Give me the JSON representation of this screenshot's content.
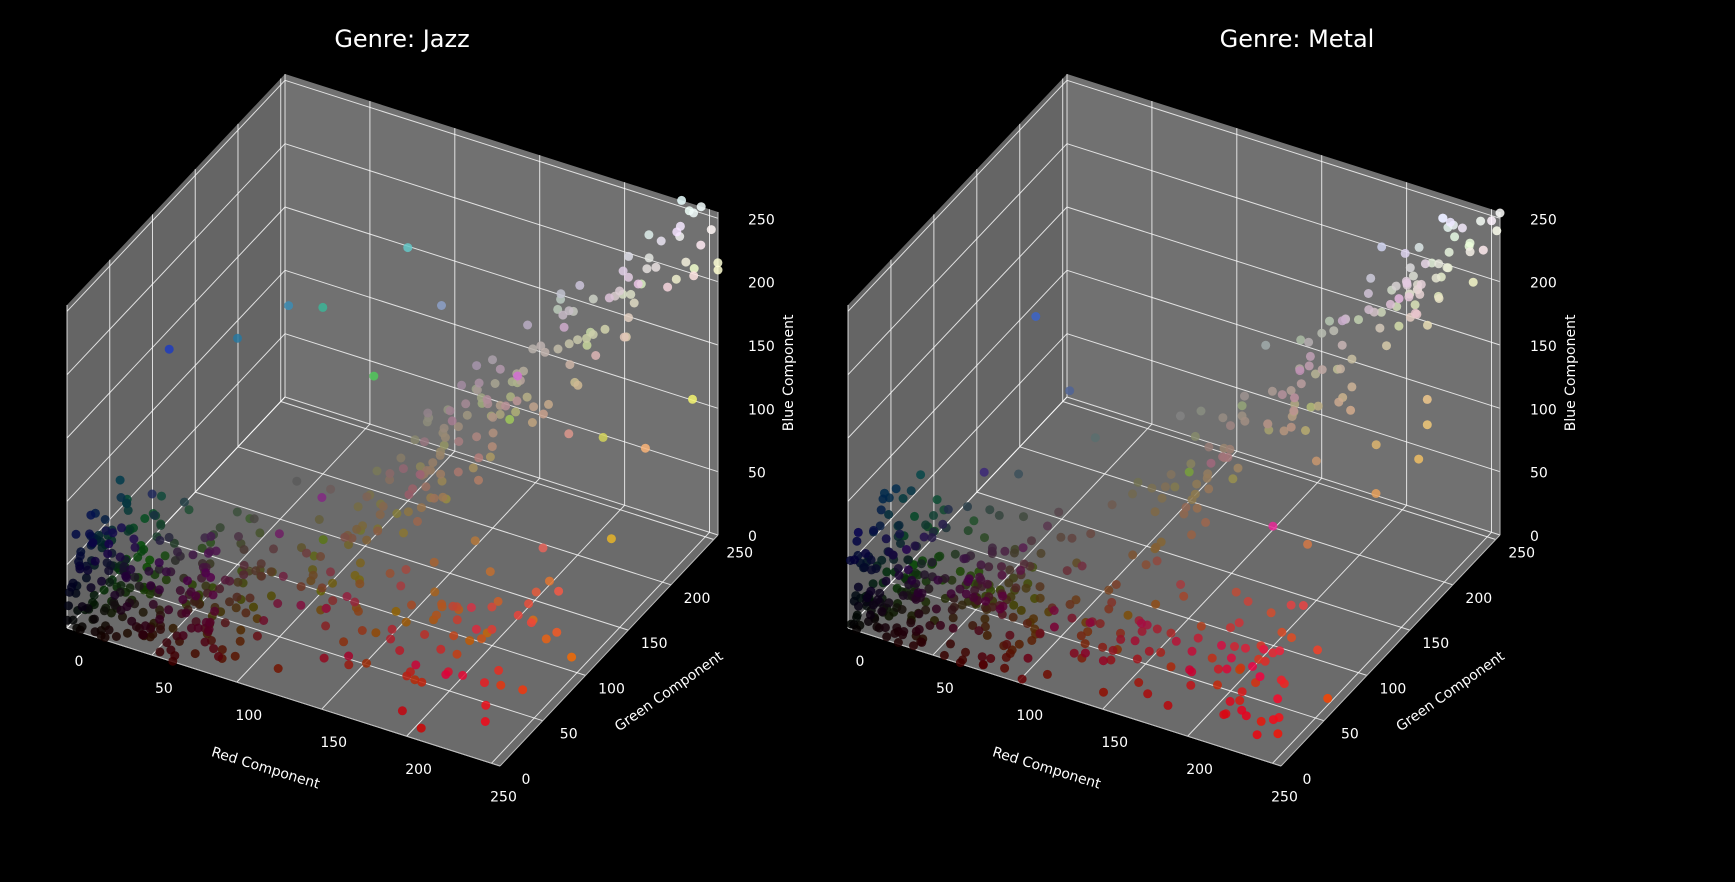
{
  "figure": {
    "background": "#000000",
    "pane_color": "#777777",
    "grid_color": "#ffffff"
  },
  "chart_data": [
    {
      "type": "scatter",
      "title": "Genre: Jazz",
      "xlabel": "Red Component",
      "ylabel": "Green Component",
      "zlabel": "Blue Component",
      "xlim": [
        0,
        255
      ],
      "ylim": [
        0,
        255
      ],
      "zlim": [
        0,
        255
      ],
      "xticks": [
        "0",
        "50",
        "100",
        "150",
        "200",
        "250"
      ],
      "yticks": [
        "0",
        "50",
        "100",
        "150",
        "200",
        "250"
      ],
      "zticks": [
        "0",
        "50",
        "100",
        "150",
        "200",
        "250"
      ],
      "grid": true,
      "point_count_estimate": 1000,
      "distribution": "RGB color samples, each point colored by its own RGB value; dense dark cluster near origin with spread toward white",
      "points": [
        [
          20,
          15,
          18
        ],
        [
          30,
          25,
          28
        ],
        [
          45,
          20,
          15
        ],
        [
          60,
          30,
          25
        ],
        [
          80,
          40,
          30
        ],
        [
          120,
          60,
          40
        ],
        [
          150,
          80,
          50
        ],
        [
          200,
          40,
          40
        ],
        [
          220,
          60,
          50
        ],
        [
          180,
          120,
          60
        ],
        [
          230,
          180,
          40
        ],
        [
          210,
          210,
          90
        ],
        [
          240,
          240,
          240
        ],
        [
          220,
          220,
          230
        ],
        [
          200,
          190,
          200
        ],
        [
          170,
          160,
          170
        ],
        [
          140,
          160,
          200
        ],
        [
          100,
          200,
          200
        ],
        [
          60,
          140,
          180
        ],
        [
          30,
          60,
          190
        ],
        [
          40,
          120,
          160
        ],
        [
          60,
          180,
          150
        ],
        [
          90,
          90,
          90
        ],
        [
          60,
          80,
          60
        ],
        [
          110,
          30,
          100
        ],
        [
          130,
          40,
          130
        ],
        [
          170,
          120,
          110
        ],
        [
          220,
          150,
          140
        ],
        [
          230,
          100,
          90
        ],
        [
          250,
          180,
          120
        ],
        [
          210,
          110,
          210
        ],
        [
          200,
          200,
          170
        ],
        [
          245,
          245,
          110
        ],
        [
          160,
          200,
          90
        ],
        [
          80,
          200,
          90
        ],
        [
          40,
          40,
          60
        ],
        [
          30,
          40,
          90
        ],
        [
          50,
          30,
          60
        ],
        [
          90,
          60,
          40
        ],
        [
          120,
          90,
          60
        ],
        [
          150,
          120,
          100
        ],
        [
          180,
          140,
          120
        ],
        [
          200,
          160,
          140
        ]
      ]
    },
    {
      "type": "scatter",
      "title": "Genre: Metal",
      "xlabel": "Red Component",
      "ylabel": "Green Component",
      "zlabel": "Blue Component",
      "xlim": [
        0,
        255
      ],
      "ylim": [
        0,
        255
      ],
      "zlim": [
        0,
        255
      ],
      "xticks": [
        "0",
        "50",
        "100",
        "150",
        "200",
        "250"
      ],
      "yticks": [
        "0",
        "50",
        "100",
        "150",
        "200",
        "250"
      ],
      "zticks": [
        "0",
        "50",
        "100",
        "150",
        "200",
        "250"
      ],
      "grid": true,
      "point_count_estimate": 1000,
      "distribution": "RGB color samples, each point colored by its own RGB value; very dense dark cluster near origin, reds along red axis, tan-to-white trail toward high values",
      "points": [
        [
          15,
          12,
          14
        ],
        [
          25,
          20,
          22
        ],
        [
          35,
          25,
          28
        ],
        [
          50,
          25,
          20
        ],
        [
          70,
          30,
          25
        ],
        [
          100,
          40,
          30
        ],
        [
          130,
          50,
          40
        ],
        [
          170,
          40,
          40
        ],
        [
          200,
          50,
          50
        ],
        [
          230,
          40,
          50
        ],
        [
          240,
          30,
          40
        ],
        [
          210,
          120,
          70
        ],
        [
          230,
          160,
          90
        ],
        [
          240,
          200,
          140
        ],
        [
          230,
          230,
          210
        ],
        [
          220,
          230,
          230
        ],
        [
          245,
          240,
          230
        ],
        [
          200,
          180,
          180
        ],
        [
          180,
          170,
          160
        ],
        [
          150,
          140,
          130
        ],
        [
          130,
          130,
          130
        ],
        [
          90,
          110,
          110
        ],
        [
          60,
          80,
          90
        ],
        [
          40,
          60,
          70
        ],
        [
          30,
          40,
          60
        ],
        [
          60,
          100,
          200
        ],
        [
          80,
          100,
          150
        ],
        [
          60,
          40,
          120
        ],
        [
          120,
          160,
          60
        ],
        [
          230,
          40,
          150
        ],
        [
          220,
          180,
          110
        ],
        [
          240,
          200,
          120
        ],
        [
          180,
          160,
          150
        ],
        [
          110,
          90,
          80
        ],
        [
          90,
          70,
          60
        ],
        [
          70,
          50,
          40
        ],
        [
          150,
          110,
          80
        ],
        [
          200,
          150,
          110
        ],
        [
          210,
          170,
          140
        ],
        [
          190,
          190,
          180
        ],
        [
          160,
          170,
          170
        ],
        [
          240,
          190,
          100
        ],
        [
          230,
          220,
          180
        ]
      ]
    }
  ]
}
